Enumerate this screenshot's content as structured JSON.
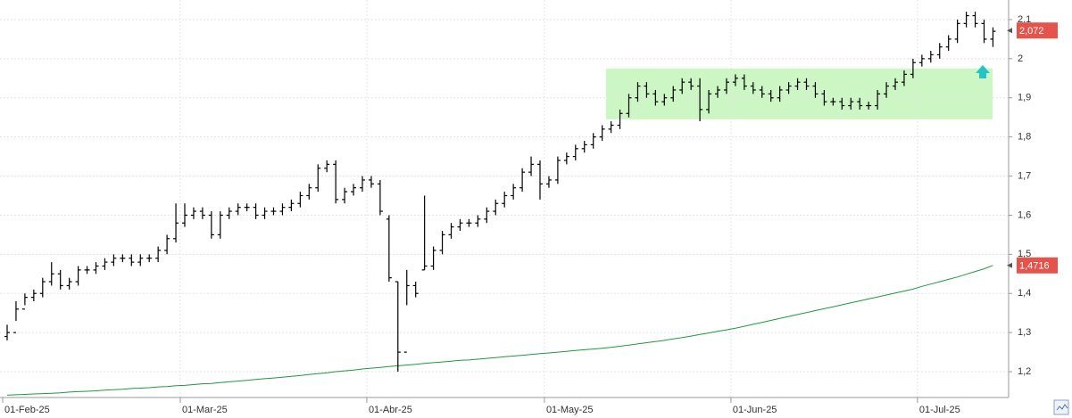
{
  "chart_data": {
    "type": "ohlc",
    "categories": [
      "01-Feb-25",
      null,
      null,
      null,
      null,
      null,
      null,
      null,
      null,
      null,
      null,
      null,
      null,
      null,
      null,
      null,
      null,
      null,
      null,
      null,
      "01-Mar-25",
      null,
      null,
      null,
      null,
      null,
      null,
      null,
      null,
      null,
      null,
      null,
      null,
      null,
      null,
      null,
      null,
      null,
      null,
      null,
      null,
      "01-Abr-25",
      null,
      null,
      null,
      null,
      null,
      null,
      null,
      null,
      null,
      null,
      null,
      null,
      null,
      null,
      null,
      null,
      null,
      null,
      null,
      "01-May-25",
      null,
      null,
      null,
      null,
      null,
      null,
      null,
      null,
      null,
      null,
      null,
      null,
      null,
      null,
      null,
      null,
      null,
      null,
      null,
      null,
      "01-Jun-25",
      null,
      null,
      null,
      null,
      null,
      null,
      null,
      null,
      null,
      null,
      null,
      null,
      null,
      null,
      null,
      null,
      null,
      null,
      null,
      null,
      "01-Jul-25",
      null,
      null,
      null,
      null,
      null,
      null,
      null,
      null
    ],
    "ohlc": {
      "color": "#000000",
      "open": [
        1.29,
        1.3,
        1.36,
        1.39,
        1.4,
        1.43,
        1.45,
        1.42,
        1.43,
        1.46,
        1.46,
        1.47,
        1.48,
        1.49,
        1.49,
        1.48,
        1.49,
        1.49,
        1.51,
        1.54,
        1.58,
        1.6,
        1.61,
        1.6,
        1.55,
        1.6,
        1.61,
        1.62,
        1.62,
        1.6,
        1.61,
        1.61,
        1.62,
        1.63,
        1.65,
        1.67,
        1.72,
        1.73,
        1.64,
        1.66,
        1.67,
        1.69,
        1.68,
        1.59,
        1.43,
        1.25,
        1.42,
        1.46,
        1.47,
        1.51,
        1.55,
        1.57,
        1.58,
        1.58,
        1.59,
        1.61,
        1.63,
        1.65,
        1.67,
        1.71,
        1.73,
        1.68,
        1.69,
        1.74,
        1.75,
        1.77,
        1.78,
        1.8,
        1.82,
        1.83,
        1.86,
        1.9,
        1.93,
        1.91,
        1.89,
        1.9,
        1.92,
        1.94,
        1.93,
        1.87,
        1.91,
        1.92,
        1.94,
        1.95,
        1.93,
        1.92,
        1.91,
        1.9,
        1.92,
        1.93,
        1.94,
        1.93,
        1.91,
        1.89,
        1.89,
        1.88,
        1.89,
        1.88,
        1.88,
        1.91,
        1.93,
        1.94,
        1.96,
        1.99,
        2.0,
        2.01,
        2.03,
        2.05,
        2.09,
        2.11,
        2.09,
        2.05
      ],
      "high": [
        1.32,
        1.38,
        1.4,
        1.41,
        1.44,
        1.48,
        1.46,
        1.44,
        1.47,
        1.47,
        1.48,
        1.49,
        1.5,
        1.5,
        1.5,
        1.5,
        1.5,
        1.52,
        1.55,
        1.63,
        1.63,
        1.62,
        1.62,
        1.61,
        1.61,
        1.62,
        1.63,
        1.63,
        1.63,
        1.62,
        1.62,
        1.63,
        1.64,
        1.66,
        1.68,
        1.73,
        1.74,
        1.74,
        1.67,
        1.68,
        1.7,
        1.7,
        1.69,
        1.6,
        1.43,
        1.46,
        1.43,
        1.65,
        1.52,
        1.56,
        1.58,
        1.59,
        1.59,
        1.6,
        1.62,
        1.64,
        1.66,
        1.68,
        1.72,
        1.75,
        1.74,
        1.7,
        1.75,
        1.76,
        1.78,
        1.79,
        1.81,
        1.83,
        1.84,
        1.87,
        1.91,
        1.94,
        1.94,
        1.92,
        1.91,
        1.93,
        1.95,
        1.95,
        1.95,
        1.92,
        1.93,
        1.95,
        1.96,
        1.96,
        1.94,
        1.93,
        1.92,
        1.93,
        1.94,
        1.95,
        1.95,
        1.94,
        1.92,
        1.9,
        1.9,
        1.9,
        1.9,
        1.89,
        1.92,
        1.94,
        1.95,
        1.97,
        2.0,
        2.01,
        2.02,
        2.04,
        2.06,
        2.1,
        2.12,
        2.12,
        2.1,
        2.08
      ],
      "low": [
        1.28,
        1.33,
        1.37,
        1.38,
        1.39,
        1.42,
        1.41,
        1.41,
        1.42,
        1.45,
        1.45,
        1.46,
        1.47,
        1.48,
        1.47,
        1.47,
        1.48,
        1.48,
        1.5,
        1.53,
        1.57,
        1.59,
        1.59,
        1.54,
        1.54,
        1.59,
        1.6,
        1.61,
        1.59,
        1.59,
        1.6,
        1.6,
        1.61,
        1.62,
        1.64,
        1.66,
        1.71,
        1.63,
        1.63,
        1.65,
        1.66,
        1.67,
        1.6,
        1.43,
        1.2,
        1.37,
        1.39,
        1.46,
        1.46,
        1.5,
        1.54,
        1.56,
        1.57,
        1.57,
        1.58,
        1.6,
        1.62,
        1.64,
        1.66,
        1.7,
        1.64,
        1.67,
        1.68,
        1.73,
        1.74,
        1.76,
        1.77,
        1.79,
        1.81,
        1.82,
        1.85,
        1.89,
        1.9,
        1.88,
        1.88,
        1.89,
        1.91,
        1.92,
        1.84,
        1.86,
        1.9,
        1.91,
        1.93,
        1.92,
        1.91,
        1.9,
        1.89,
        1.89,
        1.91,
        1.92,
        1.92,
        1.9,
        1.88,
        1.88,
        1.87,
        1.87,
        1.87,
        1.87,
        1.87,
        1.9,
        1.92,
        1.93,
        1.95,
        1.98,
        1.99,
        2.0,
        2.02,
        2.04,
        2.08,
        2.08,
        2.04,
        2.03
      ],
      "close": [
        1.3,
        1.36,
        1.39,
        1.4,
        1.43,
        1.45,
        1.42,
        1.43,
        1.46,
        1.46,
        1.47,
        1.48,
        1.49,
        1.49,
        1.48,
        1.49,
        1.49,
        1.51,
        1.54,
        1.58,
        1.6,
        1.61,
        1.6,
        1.55,
        1.6,
        1.61,
        1.62,
        1.62,
        1.6,
        1.61,
        1.61,
        1.62,
        1.63,
        1.65,
        1.67,
        1.72,
        1.73,
        1.64,
        1.66,
        1.67,
        1.69,
        1.68,
        1.61,
        1.44,
        1.25,
        1.42,
        1.4,
        1.47,
        1.51,
        1.55,
        1.57,
        1.58,
        1.58,
        1.59,
        1.61,
        1.63,
        1.65,
        1.67,
        1.71,
        1.73,
        1.68,
        1.69,
        1.74,
        1.75,
        1.77,
        1.78,
        1.8,
        1.82,
        1.83,
        1.86,
        1.9,
        1.93,
        1.91,
        1.89,
        1.9,
        1.92,
        1.94,
        1.93,
        1.87,
        1.91,
        1.92,
        1.94,
        1.95,
        1.93,
        1.92,
        1.91,
        1.9,
        1.92,
        1.93,
        1.94,
        1.93,
        1.91,
        1.89,
        1.89,
        1.88,
        1.89,
        1.88,
        1.88,
        1.91,
        1.93,
        1.94,
        1.96,
        1.99,
        2.0,
        2.01,
        2.03,
        2.05,
        2.09,
        2.11,
        2.09,
        2.05,
        2.07
      ]
    },
    "line": {
      "color": "#1f9a3c",
      "values": [
        1.14,
        1.141,
        1.142,
        1.143,
        1.144,
        1.145,
        1.146,
        1.148,
        1.149,
        1.15,
        1.151,
        1.153,
        1.154,
        1.155,
        1.157,
        1.158,
        1.159,
        1.161,
        1.162,
        1.164,
        1.165,
        1.167,
        1.169,
        1.17,
        1.172,
        1.174,
        1.176,
        1.178,
        1.18,
        1.182,
        1.184,
        1.186,
        1.188,
        1.19,
        1.193,
        1.195,
        1.197,
        1.2,
        1.202,
        1.204,
        1.207,
        1.209,
        1.211,
        1.213,
        1.215,
        1.217,
        1.219,
        1.221,
        1.223,
        1.225,
        1.227,
        1.229,
        1.23,
        1.232,
        1.234,
        1.236,
        1.238,
        1.24,
        1.242,
        1.244,
        1.246,
        1.248,
        1.25,
        1.252,
        1.254,
        1.256,
        1.258,
        1.26,
        1.262,
        1.265,
        1.268,
        1.271,
        1.274,
        1.277,
        1.28,
        1.284,
        1.287,
        1.291,
        1.295,
        1.299,
        1.303,
        1.307,
        1.311,
        1.316,
        1.321,
        1.326,
        1.331,
        1.336,
        1.341,
        1.346,
        1.351,
        1.356,
        1.361,
        1.366,
        1.371,
        1.376,
        1.381,
        1.386,
        1.391,
        1.396,
        1.401,
        1.406,
        1.411,
        1.418,
        1.424,
        1.43,
        1.436,
        1.442,
        1.449,
        1.456,
        1.463,
        1.4716
      ]
    },
    "price_labels": [
      {
        "value": 2.072,
        "label": "2,072"
      },
      {
        "value": 1.4716,
        "label": "1,4716"
      }
    ],
    "highlight": {
      "from": 1.845,
      "to": 1.975,
      "color": "#ccf7c4"
    },
    "ylim": [
      1.134,
      2.15
    ],
    "yticks": [
      {
        "value": 2.1,
        "label": "2,1"
      },
      2,
      {
        "value": 1.9,
        "label": "1,9"
      },
      {
        "value": 1.8,
        "label": "1,8"
      },
      {
        "value": 1.7,
        "label": "1,7"
      },
      {
        "value": 1.6,
        "label": "1,6"
      },
      {
        "value": 1.5,
        "label": "1,5"
      },
      {
        "value": 1.4,
        "label": "1,4"
      },
      {
        "value": 1.3,
        "label": "1,3"
      },
      {
        "value": 1.2,
        "label": "1,2"
      }
    ],
    "grid": true
  }
}
